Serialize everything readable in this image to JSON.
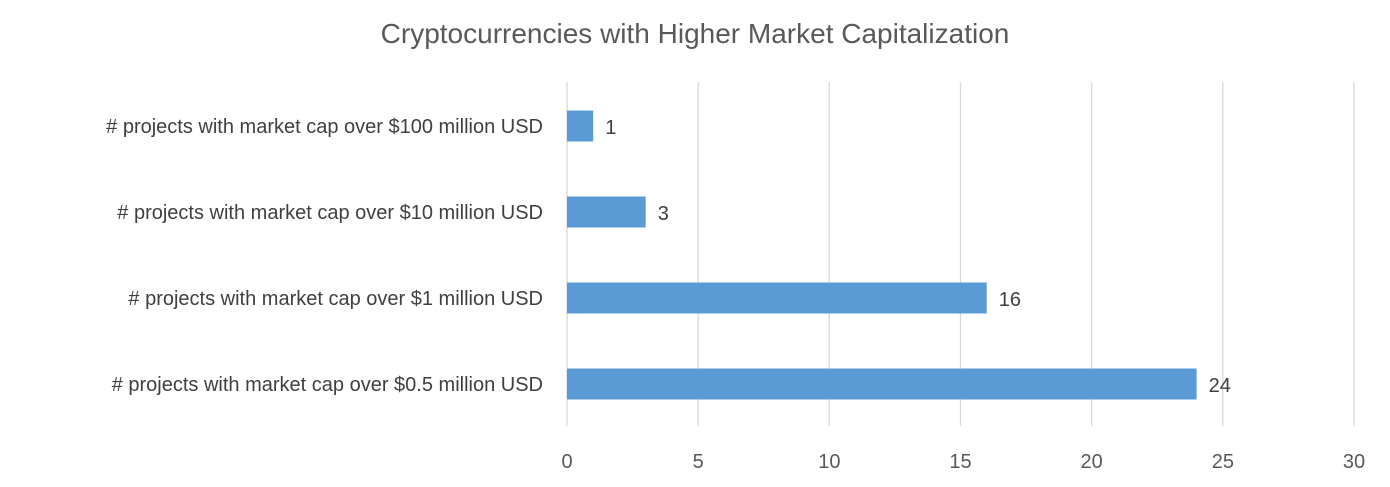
{
  "chart_data": {
    "type": "bar",
    "orientation": "horizontal",
    "title": "Cryptocurrencies with Higher Market Capitalization",
    "categories": [
      "#  projects with market cap over $100 million USD",
      "# projects with market cap over $10 million USD",
      "# projects with market cap over $1 million USD",
      "# projects with market cap over $0.5 million USD"
    ],
    "values": [
      1,
      3,
      16,
      24
    ],
    "xlim": [
      0,
      30
    ],
    "xticks": [
      0,
      5,
      10,
      15,
      20,
      25,
      30
    ],
    "grid": true,
    "data_labels": true,
    "legend": "none",
    "bar_color": "#5b9bd5",
    "grid_color": "#d9d9d9"
  }
}
